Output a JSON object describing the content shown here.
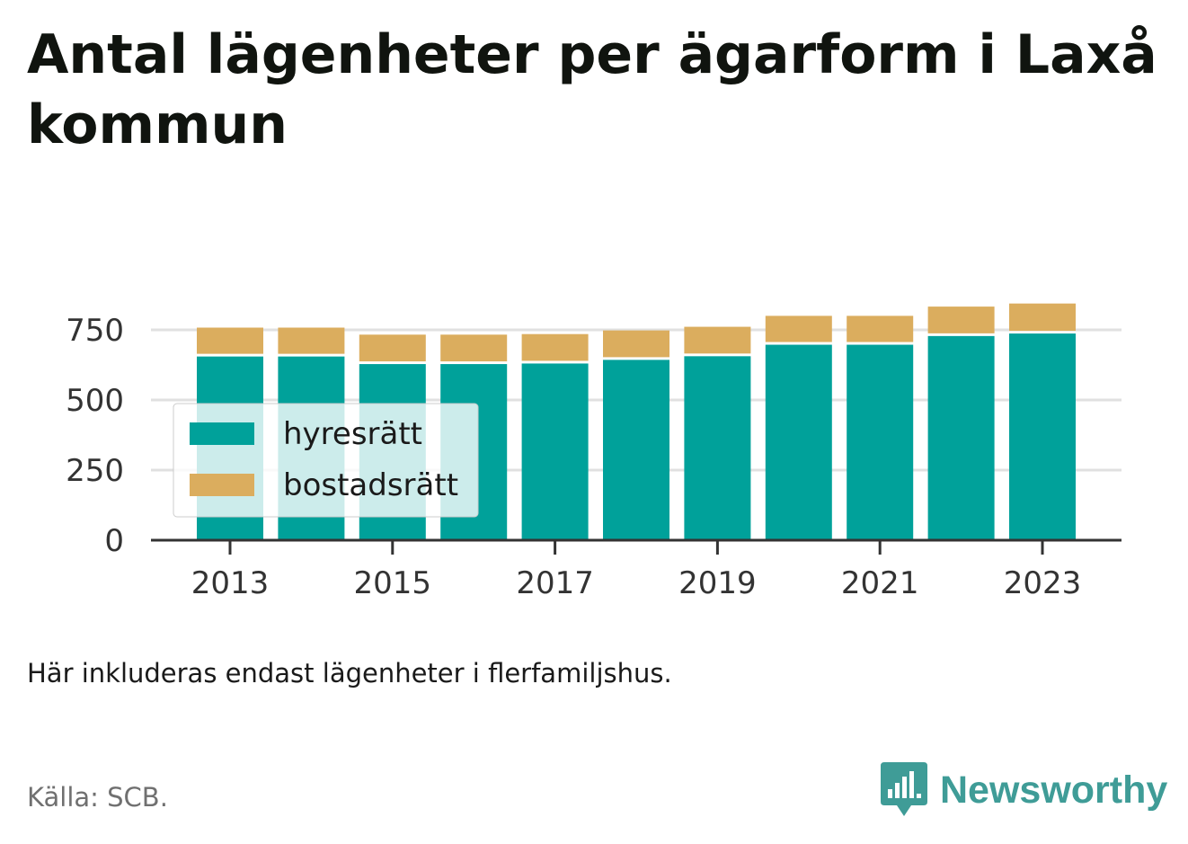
{
  "title": "Antal lägenheter per ägarform i Laxå kommun",
  "note": "Här inkluderas endast lägenheter i flerfamiljshus.",
  "source": "Källa: SCB.",
  "brand": {
    "name": "Newsworthy",
    "icon": "newsworthy-logo-icon",
    "color": "#3f9c97"
  },
  "colors": {
    "hyresratt": "#00a19a",
    "bostadsratt": "#dbad5e",
    "grid": "#e0e0e0",
    "axis": "#333333"
  },
  "chart_data": {
    "type": "bar",
    "stacked": true,
    "title": "Antal lägenheter per ägarform i Laxå kommun",
    "xlabel": "",
    "ylabel": "",
    "x": [
      2013,
      2014,
      2015,
      2016,
      2017,
      2018,
      2019,
      2020,
      2021,
      2022,
      2023
    ],
    "x_tick_labels": [
      "2013",
      "2015",
      "2017",
      "2019",
      "2021",
      "2023"
    ],
    "y_tick_labels": [
      "0",
      "250",
      "500",
      "750"
    ],
    "ylim": [
      0,
      800
    ],
    "grid": true,
    "legend_position": "left",
    "series": [
      {
        "name": "hyresrätt",
        "color": "#00a19a",
        "values": [
          655,
          655,
          628,
          628,
          630,
          643,
          656,
          697,
          697,
          728,
          737
        ]
      },
      {
        "name": "bostadsrätt",
        "color": "#dbad5e",
        "values": [
          103,
          103,
          105,
          105,
          105,
          105,
          105,
          103,
          103,
          105,
          107
        ]
      }
    ]
  }
}
